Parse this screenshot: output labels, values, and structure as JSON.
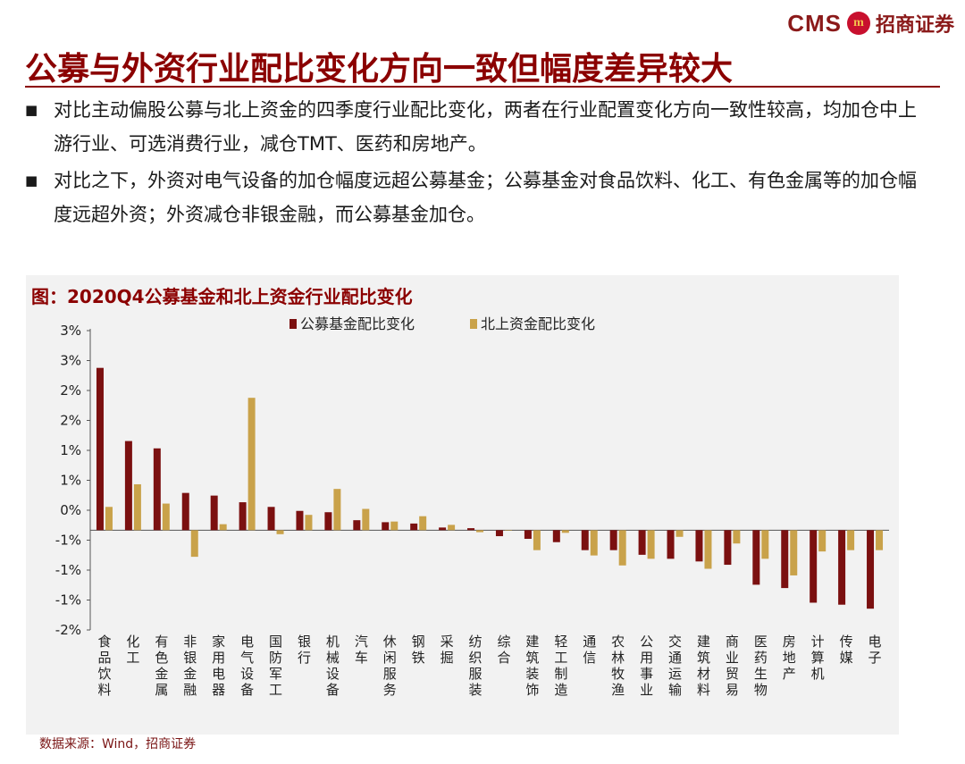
{
  "header": {
    "logo_text": "CMS",
    "logo_badge": "m",
    "logo_cn": "招商证券"
  },
  "title": "公募与外资行业配比变化方向一致但幅度差异较大",
  "bullets": [
    "对比主动偏股公募与北上资金的四季度行业配比变化，两者在行业配置变化方向一致性较高，均加仓中上游行业、可选消费行业，减仓TMT、医药和房地产。",
    "对比之下，外资对电气设备的加仓幅度远超公募基金；公募基金对食品饮料、化工、有色金属等的加仓幅度远超外资；外资减仓非银金融，而公募基金加仓。"
  ],
  "bullet_marker": "■",
  "chart_title": "图：2020Q4公募基金和北上资金行业配比变化",
  "source": "数据来源：Wind，招商证券",
  "colors": {
    "brand": "#8b0000",
    "fund": "#7b1010",
    "north": "#c9a24a",
    "panel": "#f2f2f2"
  },
  "chart_data": {
    "type": "bar",
    "categories": [
      "食品饮料",
      "化工",
      "有色金属",
      "非银金融",
      "家用电器",
      "电气设备",
      "国防军工",
      "银行",
      "机械设备",
      "汽车",
      "休闲服务",
      "钢铁",
      "采掘",
      "纺织服装",
      "综合",
      "建筑装饰",
      "轻工制造",
      "通信",
      "农林牧渔",
      "公用事业",
      "交通运输",
      "建筑材料",
      "商业贸易",
      "医药生物",
      "房地产",
      "计算机",
      "传媒",
      "电子"
    ],
    "series": [
      {
        "name": "公募基金配比变化",
        "values": [
          2.44,
          1.34,
          1.23,
          0.56,
          0.52,
          0.42,
          0.35,
          0.29,
          0.27,
          0.15,
          0.12,
          0.1,
          0.04,
          0.03,
          -0.09,
          -0.13,
          -0.18,
          -0.3,
          -0.3,
          -0.37,
          -0.43,
          -0.47,
          -0.52,
          -0.82,
          -0.87,
          -1.09,
          -1.12,
          -1.18
        ]
      },
      {
        "name": "北上资金配比变化",
        "values": [
          0.35,
          0.69,
          0.4,
          -0.4,
          0.09,
          1.99,
          -0.06,
          0.23,
          0.62,
          0.32,
          0.13,
          0.21,
          0.08,
          -0.03,
          0.0,
          -0.3,
          -0.04,
          -0.38,
          -0.53,
          -0.43,
          -0.1,
          -0.58,
          -0.2,
          -0.43,
          -0.68,
          -0.32,
          -0.3,
          -0.3
        ]
      }
    ],
    "yticks": [
      "3%",
      "3%",
      "2%",
      "2%",
      "1%",
      "1%",
      "0%",
      "-1%",
      "-1%",
      "-1%",
      "-2%"
    ],
    "ylim": [
      -1.5,
      3.0
    ],
    "legend_position": "top"
  }
}
